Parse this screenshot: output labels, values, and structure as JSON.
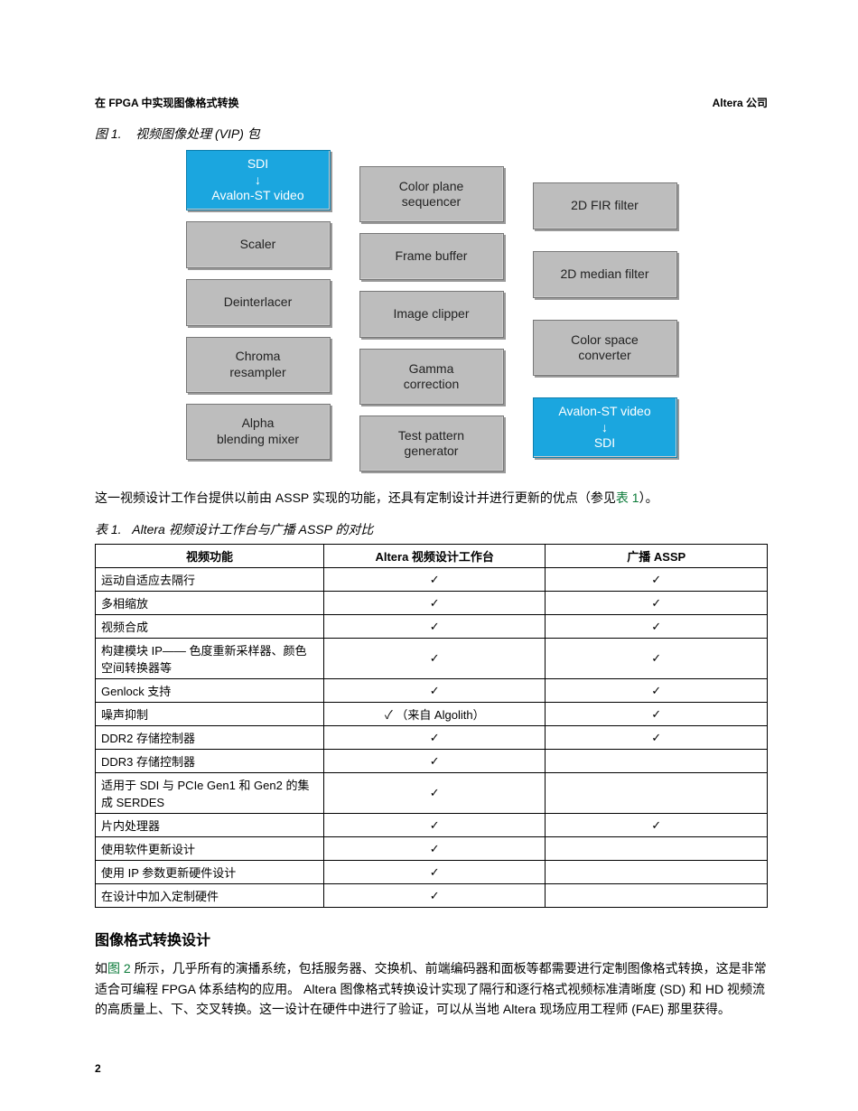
{
  "header": {
    "left": "在 FPGA 中实现图像格式转换",
    "right": "Altera 公司"
  },
  "figure": {
    "label": "图 1.",
    "title": "视频图像处理 (VIP) 包",
    "col1": [
      {
        "text": "SDI\n↓\nAvalon-ST video",
        "style": "blue tall"
      },
      {
        "text": "Scaler",
        "style": "gray"
      },
      {
        "text": "Deinterlacer",
        "style": "gray"
      },
      {
        "text": "Chroma\nresampler",
        "style": "gray tall"
      },
      {
        "text": "Alpha\nblending mixer",
        "style": "gray tall"
      }
    ],
    "col2": [
      {
        "text": "Color plane\nsequencer",
        "style": "gray tall"
      },
      {
        "text": "Frame buffer",
        "style": "gray"
      },
      {
        "text": "Image clipper",
        "style": "gray"
      },
      {
        "text": "Gamma\ncorrection",
        "style": "gray tall"
      },
      {
        "text": "Test pattern\ngenerator",
        "style": "gray tall"
      }
    ],
    "col3": [
      {
        "text": "2D FIR filter",
        "style": "gray"
      },
      {
        "text": "2D median filter",
        "style": "gray"
      },
      {
        "text": "Color space\nconverter",
        "style": "gray tall"
      },
      {
        "text": "Avalon-ST video\n↓\nSDI",
        "style": "blue tall"
      }
    ]
  },
  "para_before_table_a": "这一视频设计工作台提供以前由 ASSP 实现的功能，还具有定制设计并进行更新的优点（参见",
  "para_before_table_link": "表 1",
  "para_before_table_b": "）。",
  "table": {
    "label": "表 1.",
    "title": "Altera 视频设计工作台与广播 ASSP 的对比",
    "headers": [
      "视频功能",
      "Altera 视频设计工作台",
      "广播 ASSP"
    ],
    "rows": [
      [
        "运动自适应去隔行",
        "✓",
        "✓"
      ],
      [
        "多相缩放",
        "✓",
        "✓"
      ],
      [
        "视频合成",
        "✓",
        "✓"
      ],
      [
        "构建模块 IP—— 色度重新采样器、颜色空间转换器等",
        "✓",
        "✓"
      ],
      [
        "Genlock 支持",
        "✓",
        "✓"
      ],
      [
        "噪声抑制",
        "✓ （来自 Algolith）",
        "✓"
      ],
      [
        "DDR2 存储控制器",
        "✓",
        "✓"
      ],
      [
        "DDR3 存储控制器",
        "✓",
        ""
      ],
      [
        "适用于 SDI 与 PCIe Gen1 和 Gen2 的集成 SERDES",
        "✓",
        ""
      ],
      [
        "片内处理器",
        "✓",
        "✓"
      ],
      [
        "使用软件更新设计",
        "✓",
        ""
      ],
      [
        "使用 IP 参数更新硬件设计",
        "✓",
        ""
      ],
      [
        "在设计中加入定制硬件",
        "✓",
        ""
      ]
    ]
  },
  "section": {
    "heading": "图像格式转换设计",
    "body_a": "如",
    "body_link": "图 2",
    "body_b": " 所示，几乎所有的演播系统，包括服务器、交换机、前端编码器和面板等都需要进行定制图像格式转换，这是非常适合可编程 FPGA 体系结构的应用。 Altera 图像格式转换设计实现了隔行和逐行格式视频标准清晰度 (SD) 和 HD 视频流的高质量上、下、交叉转换。这一设计在硬件中进行了验证，可以从当地 Altera 现场应用工程师 (FAE) 那里获得。"
  },
  "page_number": "2",
  "colors": {
    "gray_box": "#bdbdbd",
    "blue_box": "#1ba6df",
    "link": "#0a7a38",
    "border": "#000000",
    "bg": "#ffffff"
  }
}
